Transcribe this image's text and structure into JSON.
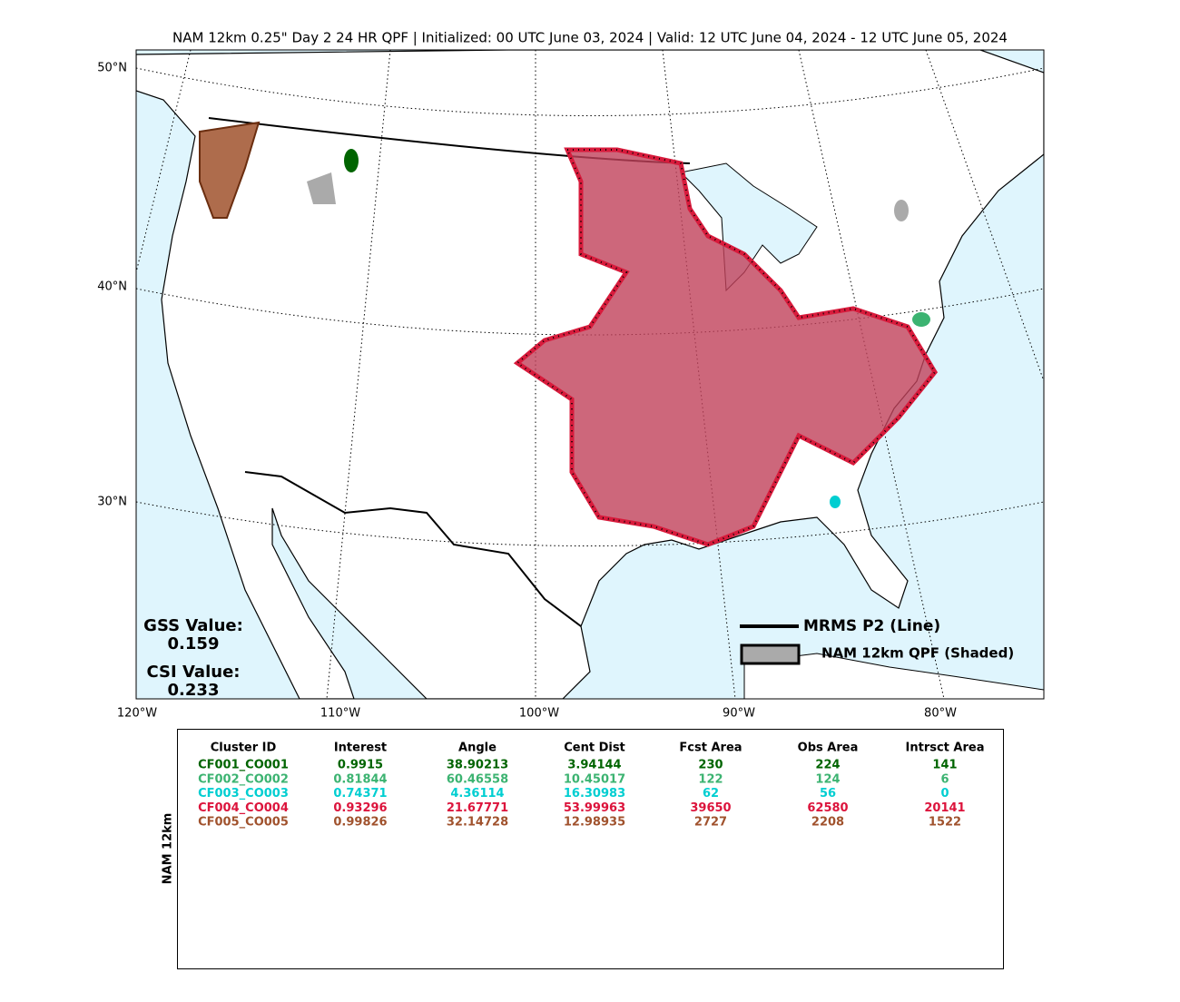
{
  "header": {
    "title": "NAM 12km 0.25\" Day 2 24 HR QPF | Initialized: 00 UTC June 03, 2024 | Valid: 12 UTC June 04, 2024 - 12 UTC June 05, 2024"
  },
  "map": {
    "lat_labels": [
      "50°N",
      "40°N",
      "30°N"
    ],
    "lon_labels": [
      "120°W",
      "110°W",
      "100°W",
      "90°W",
      "80°W"
    ],
    "gss": {
      "label": "GSS Value:",
      "value": "0.159"
    },
    "csi": {
      "label": "CSI Value:",
      "value": "0.233"
    },
    "legend": [
      "MRMS P2 (Line)",
      "NAM 12km QPF (Shaded)"
    ]
  },
  "table": {
    "side_label": "NAM 12km",
    "columns": [
      "Cluster ID",
      "Interest",
      "Angle",
      "Cent Dist",
      "Fcst Area",
      "Obs Area",
      "Intrsct Area"
    ],
    "rows": [
      {
        "color": "#006400",
        "cells": [
          "CF001_CO001",
          "0.9915",
          "38.90213",
          "3.94144",
          "230",
          "224",
          "141"
        ]
      },
      {
        "color": "#3cb371",
        "cells": [
          "CF002_CO002",
          "0.81844",
          "60.46558",
          "10.45017",
          "122",
          "124",
          "6"
        ]
      },
      {
        "color": "#00ced1",
        "cells": [
          "CF003_CO003",
          "0.74371",
          "4.36114",
          "16.30983",
          "62",
          "56",
          "0"
        ]
      },
      {
        "color": "#dc143c",
        "cells": [
          "CF004_CO004",
          "0.93296",
          "21.67771",
          "53.99963",
          "39650",
          "62580",
          "20141"
        ]
      },
      {
        "color": "#a0522d",
        "cells": [
          "CF005_CO005",
          "0.99826",
          "32.14728",
          "12.98935",
          "2727",
          "2208",
          "1522"
        ]
      }
    ]
  }
}
